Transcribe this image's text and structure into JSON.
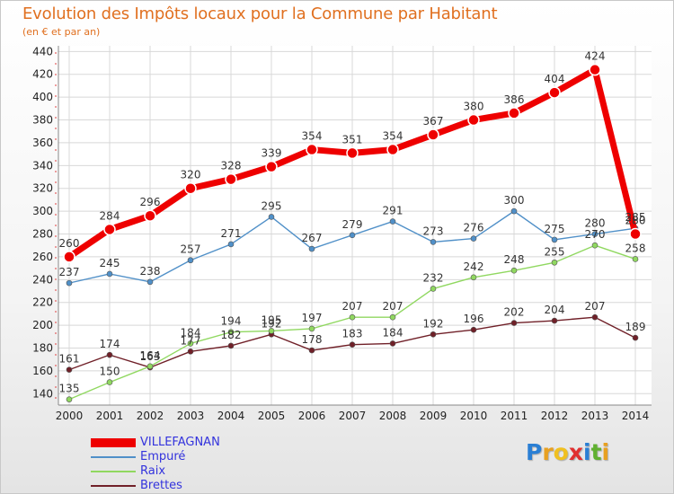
{
  "title": "Evolution des Impôts locaux pour la Commune par Habitant",
  "subtitle": "(en € et par an)",
  "logo": {
    "letters": [
      "P",
      "r",
      "o",
      "x",
      "i",
      "t",
      "i"
    ],
    "colors": [
      "#2a7fd4",
      "#e8a020",
      "#f0c020",
      "#e03030",
      "#2a7fd4",
      "#60b030",
      "#e8a020"
    ]
  },
  "chart_data": {
    "type": "line",
    "x": [
      "2000",
      "2001",
      "2002",
      "2003",
      "2004",
      "2005",
      "2006",
      "2007",
      "2008",
      "2009",
      "2010",
      "2011",
      "2012",
      "2013",
      "2014"
    ],
    "ylim": [
      130,
      445
    ],
    "yticks": [
      140,
      160,
      180,
      200,
      220,
      240,
      260,
      280,
      300,
      320,
      340,
      360,
      380,
      400,
      420,
      440
    ],
    "grid": true,
    "legend_position": "bottom-left",
    "series": [
      {
        "name": "VILLEFAGNAN",
        "color": "#ee0000",
        "values": [
          260,
          284,
          296,
          320,
          328,
          339,
          354,
          351,
          354,
          367,
          380,
          386,
          404,
          424,
          280
        ]
      },
      {
        "name": "Empuré",
        "color": "#5090c8",
        "values": [
          237,
          245,
          238,
          257,
          271,
          295,
          267,
          279,
          291,
          273,
          276,
          300,
          275,
          280,
          285
        ]
      },
      {
        "name": "Raix",
        "color": "#90d860",
        "values": [
          135,
          150,
          164,
          184,
          194,
          195,
          197,
          207,
          207,
          232,
          242,
          248,
          255,
          270,
          258
        ]
      },
      {
        "name": "Brettes",
        "color": "#702028",
        "values": [
          161,
          174,
          163,
          177,
          182,
          192,
          178,
          183,
          184,
          192,
          196,
          202,
          204,
          207,
          189
        ]
      }
    ],
    "data_labels": [
      [
        "260",
        "284",
        "296",
        "320",
        "328",
        "339",
        "354",
        "351",
        "354",
        "367",
        "380",
        "386",
        "404",
        "424",
        "280"
      ],
      [
        "237",
        "245",
        "238",
        "257",
        "271",
        "295",
        "267",
        "279",
        "291",
        "273",
        "276",
        "300",
        "275",
        "280",
        "285"
      ],
      [
        "135",
        "150",
        "164",
        "184",
        "194",
        "195",
        "197",
        "207",
        "207",
        "232",
        "242",
        "248",
        "255",
        "270",
        "258"
      ],
      [
        "161",
        "174",
        "163",
        "177",
        "182",
        "192",
        "178",
        "183",
        "184",
        "192",
        "196",
        "202",
        "204",
        "207",
        "189"
      ]
    ]
  }
}
